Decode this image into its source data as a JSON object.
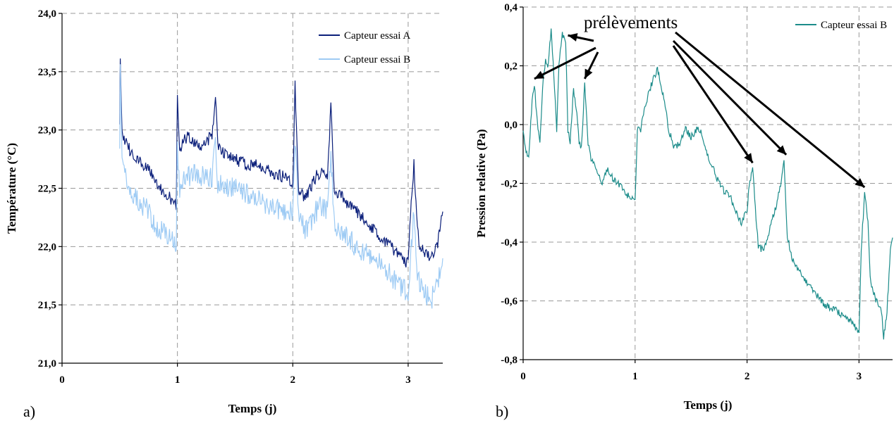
{
  "chart_data": [
    {
      "type": "line",
      "panel_label": "a)",
      "xlabel": "Temps (j)",
      "ylabel": "Température (°C)",
      "xlim": [
        0,
        3.3
      ],
      "ylim": [
        21.0,
        24.0
      ],
      "x_ticks": [
        "0",
        "1",
        "2",
        "3"
      ],
      "y_ticks": [
        "21,0",
        "21,5",
        "22,0",
        "22,5",
        "23,0",
        "23,5",
        "24,0"
      ],
      "grid": true,
      "legend_position": "top-right",
      "series": [
        {
          "name": "Capteur essai A",
          "color": "#0b1f7a",
          "x": [
            0.5,
            0.505,
            0.52,
            0.55,
            0.6,
            0.65,
            0.7,
            0.75,
            0.8,
            0.85,
            0.9,
            0.95,
            0.98,
            0.99,
            1.0,
            1.02,
            1.05,
            1.1,
            1.15,
            1.2,
            1.25,
            1.3,
            1.33,
            1.35,
            1.4,
            1.5,
            1.6,
            1.7,
            1.8,
            1.9,
            1.95,
            2.0,
            2.02,
            2.05,
            2.08,
            2.1,
            2.15,
            2.2,
            2.25,
            2.3,
            2.33,
            2.36,
            2.4,
            2.5,
            2.6,
            2.7,
            2.8,
            2.9,
            2.95,
            3.0,
            3.02,
            3.05,
            3.08,
            3.1,
            3.15,
            3.2,
            3.25,
            3.3
          ],
          "y": [
            23.1,
            23.65,
            22.95,
            22.9,
            22.8,
            22.75,
            22.7,
            22.65,
            22.6,
            22.5,
            22.45,
            22.4,
            22.35,
            22.35,
            23.3,
            22.8,
            22.9,
            22.95,
            22.9,
            22.85,
            22.9,
            22.95,
            23.3,
            22.85,
            22.8,
            22.75,
            22.7,
            22.7,
            22.65,
            22.6,
            22.6,
            22.55,
            23.4,
            22.45,
            22.45,
            22.4,
            22.5,
            22.6,
            22.65,
            22.6,
            23.2,
            22.5,
            22.45,
            22.35,
            22.25,
            22.15,
            22.05,
            21.95,
            21.9,
            21.85,
            22.3,
            22.7,
            22.2,
            22.0,
            21.95,
            21.9,
            22.0,
            22.3
          ]
        },
        {
          "name": "Capteur essai B",
          "color": "#9ecbf4",
          "x": [
            0.5,
            0.505,
            0.52,
            0.55,
            0.6,
            0.65,
            0.7,
            0.75,
            0.8,
            0.85,
            0.9,
            0.95,
            0.98,
            0.99,
            1.0,
            1.02,
            1.05,
            1.1,
            1.15,
            1.2,
            1.25,
            1.3,
            1.33,
            1.35,
            1.4,
            1.5,
            1.6,
            1.7,
            1.8,
            1.9,
            1.95,
            2.0,
            2.02,
            2.05,
            2.08,
            2.1,
            2.15,
            2.2,
            2.25,
            2.3,
            2.33,
            2.36,
            2.4,
            2.5,
            2.6,
            2.7,
            2.8,
            2.9,
            2.95,
            3.0,
            3.02,
            3.05,
            3.08,
            3.1,
            3.15,
            3.2,
            3.25,
            3.3
          ],
          "y": [
            22.9,
            23.5,
            22.7,
            22.6,
            22.45,
            22.4,
            22.35,
            22.3,
            22.2,
            22.15,
            22.1,
            22.05,
            22.0,
            22.0,
            22.9,
            22.45,
            22.55,
            22.6,
            22.65,
            22.6,
            22.6,
            22.6,
            22.9,
            22.55,
            22.5,
            22.5,
            22.45,
            22.4,
            22.35,
            22.3,
            22.3,
            22.3,
            22.9,
            22.25,
            22.2,
            22.15,
            22.2,
            22.3,
            22.35,
            22.3,
            22.8,
            22.2,
            22.15,
            22.05,
            21.95,
            21.9,
            21.8,
            21.7,
            21.65,
            21.6,
            21.9,
            22.3,
            21.8,
            21.65,
            21.6,
            21.55,
            21.65,
            21.9
          ]
        }
      ]
    },
    {
      "type": "line",
      "panel_label": "b)",
      "xlabel": "Temps (j)",
      "ylabel": "Pression relative (Pa)",
      "xlim": [
        0,
        3.3
      ],
      "ylim": [
        -0.8,
        0.5
      ],
      "x_ticks": [
        "0",
        "1",
        "2",
        "3"
      ],
      "y_ticks": [
        "-0,8",
        "-0,6",
        "-0,4",
        "-0,2",
        "0,0",
        "0,2",
        "0,4"
      ],
      "grid": true,
      "legend_position": "top-right",
      "annotation": {
        "text": "prélèvements",
        "targets": [
          [
            0.1,
            0.22
          ],
          [
            0.4,
            0.38
          ],
          [
            0.55,
            0.22
          ],
          [
            2.05,
            -0.09
          ],
          [
            2.35,
            -0.06
          ],
          [
            3.05,
            -0.18
          ]
        ]
      },
      "series": [
        {
          "name": "Capteur essai B",
          "color": "#1c8c8a",
          "x": [
            0.0,
            0.02,
            0.05,
            0.08,
            0.1,
            0.12,
            0.15,
            0.18,
            0.2,
            0.22,
            0.25,
            0.28,
            0.3,
            0.32,
            0.35,
            0.38,
            0.4,
            0.42,
            0.45,
            0.48,
            0.5,
            0.52,
            0.55,
            0.58,
            0.6,
            0.65,
            0.7,
            0.75,
            0.8,
            0.85,
            0.9,
            0.95,
            1.0,
            1.02,
            1.05,
            1.1,
            1.15,
            1.2,
            1.25,
            1.3,
            1.35,
            1.4,
            1.45,
            1.5,
            1.55,
            1.6,
            1.65,
            1.7,
            1.75,
            1.8,
            1.85,
            1.9,
            1.95,
            2.0,
            2.02,
            2.05,
            2.08,
            2.1,
            2.15,
            2.2,
            2.25,
            2.3,
            2.33,
            2.36,
            2.4,
            2.5,
            2.6,
            2.7,
            2.8,
            2.9,
            2.95,
            3.0,
            3.02,
            3.05,
            3.08,
            3.1,
            3.15,
            3.2,
            3.22,
            3.25,
            3.28,
            3.3
          ],
          "y": [
            0.05,
            -0.02,
            -0.05,
            0.15,
            0.22,
            0.1,
            0.0,
            0.25,
            0.3,
            0.28,
            0.42,
            0.2,
            0.05,
            0.3,
            0.4,
            0.38,
            0.05,
            0.0,
            0.2,
            0.1,
            0.0,
            -0.02,
            0.22,
            0.0,
            -0.05,
            -0.1,
            -0.15,
            -0.1,
            -0.13,
            -0.15,
            -0.18,
            -0.2,
            -0.22,
            0.05,
            0.05,
            0.15,
            0.22,
            0.27,
            0.18,
            0.05,
            -0.02,
            0.0,
            0.05,
            0.02,
            0.05,
            0.03,
            -0.05,
            -0.1,
            -0.15,
            -0.18,
            -0.2,
            -0.25,
            -0.3,
            -0.25,
            -0.15,
            -0.09,
            -0.28,
            -0.38,
            -0.4,
            -0.32,
            -0.25,
            -0.15,
            -0.06,
            -0.35,
            -0.42,
            -0.5,
            -0.55,
            -0.6,
            -0.62,
            -0.65,
            -0.67,
            -0.7,
            -0.4,
            -0.18,
            -0.3,
            -0.5,
            -0.58,
            -0.62,
            -0.72,
            -0.62,
            -0.4,
            -0.35
          ]
        }
      ]
    }
  ]
}
